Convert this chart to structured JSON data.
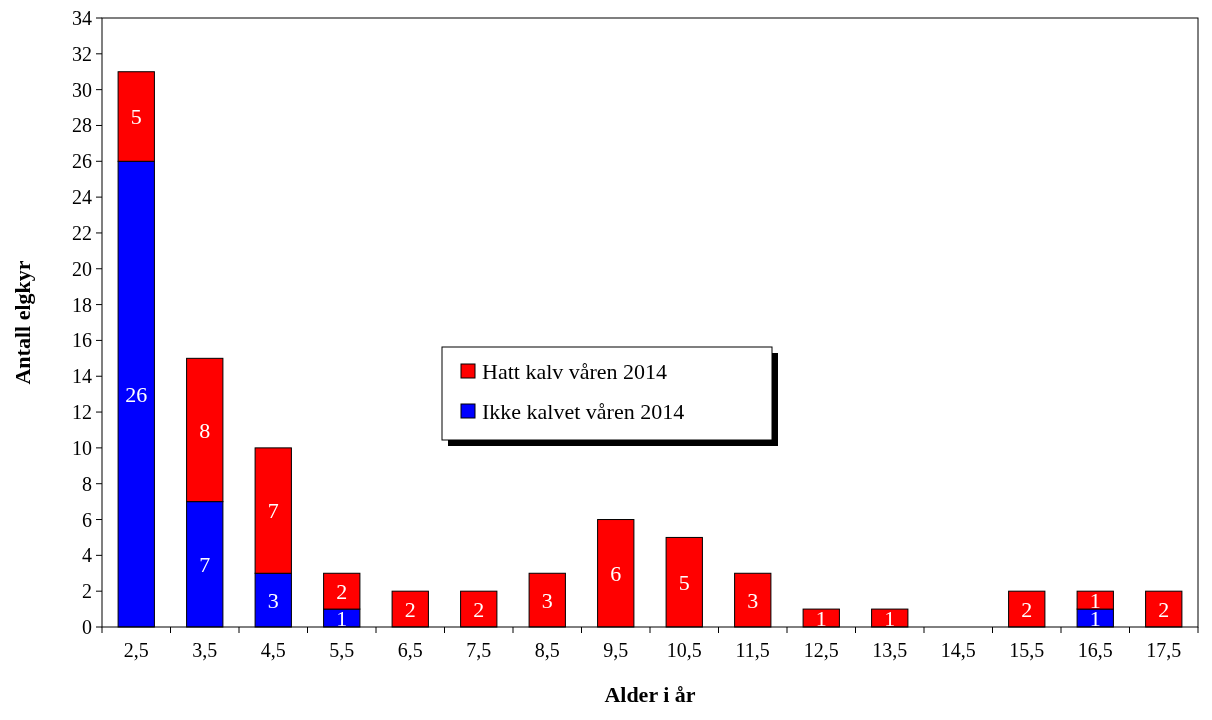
{
  "chart_data": {
    "type": "bar",
    "stacked": true,
    "xlabel": "Alder i år",
    "ylabel": "Antall elgkyr",
    "categories": [
      "2,5",
      "3,5",
      "4,5",
      "5,5",
      "6,5",
      "7,5",
      "8,5",
      "9,5",
      "10,5",
      "11,5",
      "12,5",
      "13,5",
      "14,5",
      "15,5",
      "16,5",
      "17,5"
    ],
    "series": [
      {
        "name": "Ikke kalvet våren 2014",
        "color": "#0000ff",
        "values": [
          26,
          7,
          3,
          1,
          0,
          0,
          0,
          0,
          0,
          0,
          0,
          0,
          0,
          0,
          1,
          0
        ],
        "value_labels": [
          "26",
          "7",
          "3",
          "1",
          null,
          null,
          null,
          null,
          null,
          null,
          null,
          null,
          null,
          null,
          "1",
          null
        ]
      },
      {
        "name": "Hatt kalv våren 2014",
        "color": "#ff0000",
        "values": [
          5,
          8,
          7,
          2,
          2,
          2,
          3,
          6,
          5,
          3,
          1,
          1,
          0,
          2,
          1,
          2
        ],
        "value_labels": [
          "5",
          "8",
          "7",
          "2",
          "2",
          "2",
          "3",
          "6",
          "5",
          "3",
          "1",
          "1",
          null,
          "2",
          "1",
          "2"
        ]
      }
    ],
    "ylim": [
      0,
      34
    ],
    "yticks": [
      0,
      2,
      4,
      6,
      8,
      10,
      12,
      14,
      16,
      18,
      20,
      22,
      24,
      26,
      28,
      30,
      32,
      34
    ],
    "grid": false,
    "legend": "center"
  }
}
